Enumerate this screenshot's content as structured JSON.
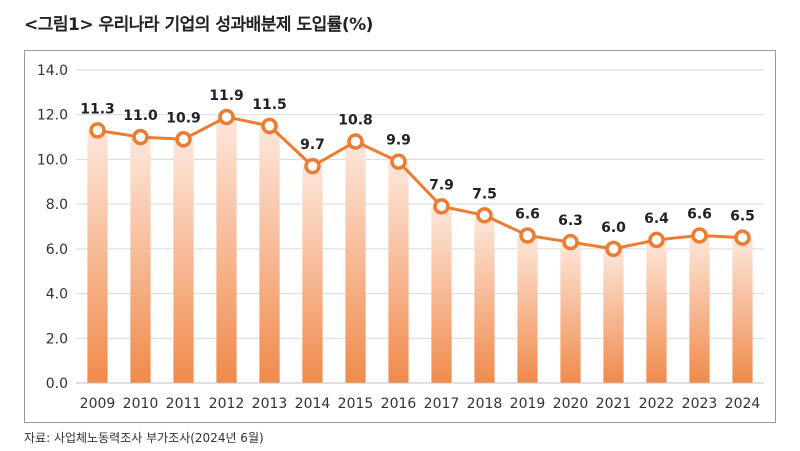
{
  "header": {
    "title": "<그림1> 우리나라 기업의 성과배분제 도입률(%)"
  },
  "footer": {
    "source": "자료: 사업체노동력조사 부가조사(2024년 6월)"
  },
  "colors": {
    "line": "#ec7c30",
    "bar_top": "#fde7dc",
    "bar_bottom": "#f08a4b",
    "grid": "#d9d9d9"
  },
  "chart_data": {
    "type": "line",
    "x": [
      "2009",
      "2010",
      "2011",
      "2012",
      "2013",
      "2014",
      "2015",
      "2016",
      "2017",
      "2018",
      "2019",
      "2020",
      "2021",
      "2022",
      "2023",
      "2024"
    ],
    "values": [
      11.3,
      11.0,
      10.9,
      11.9,
      11.5,
      9.7,
      10.8,
      9.9,
      7.9,
      7.5,
      6.6,
      6.3,
      6.0,
      6.4,
      6.6,
      6.5
    ],
    "value_labels": [
      "11.3",
      "11.0",
      "10.9",
      "11.9",
      "11.5",
      "9.7",
      "10.8",
      "9.9",
      "7.9",
      "7.5",
      "6.6",
      "6.3",
      "6.0",
      "6.4",
      "6.6",
      "6.5"
    ],
    "y_ticks": [
      "0.0",
      "2.0",
      "4.0",
      "6.0",
      "8.0",
      "10.0",
      "12.0",
      "14.0"
    ],
    "ylim": [
      0,
      14
    ],
    "grid": true,
    "legend": "none"
  }
}
